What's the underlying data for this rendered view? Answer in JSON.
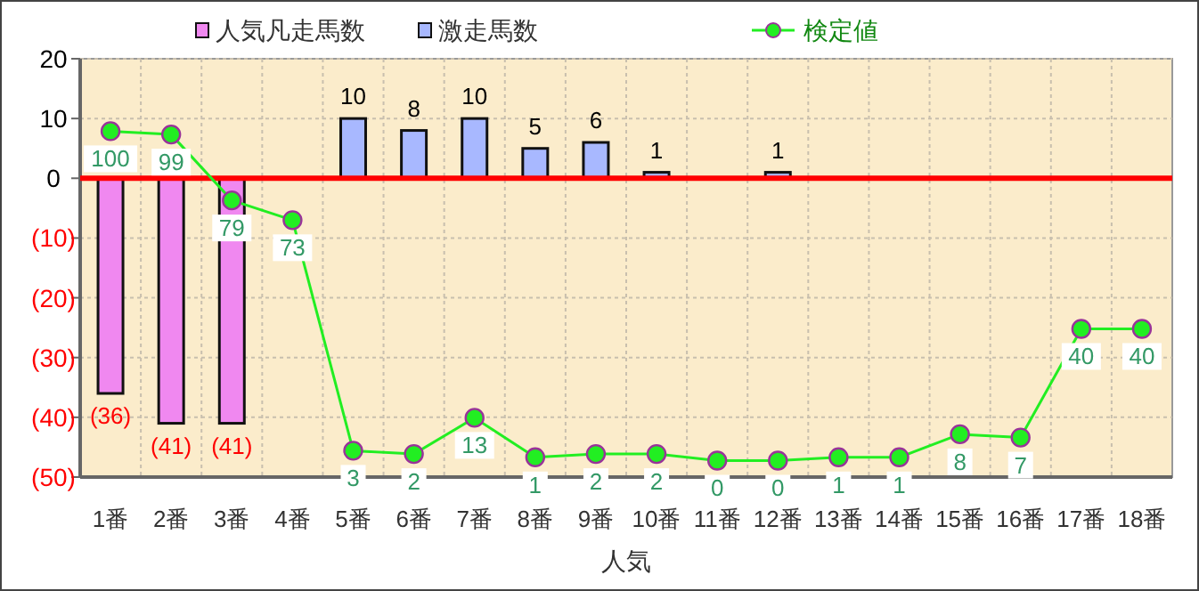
{
  "chart_data": {
    "type": "bar",
    "xlabel": "人気",
    "categories": [
      "1番",
      "2番",
      "3番",
      "4番",
      "5番",
      "6番",
      "7番",
      "8番",
      "9番",
      "10番",
      "11番",
      "12番",
      "13番",
      "14番",
      "15番",
      "16番",
      "17番",
      "18番"
    ],
    "series": [
      {
        "name": "人気凡走馬数",
        "color": "#f088f0",
        "values": [
          -36,
          -41,
          -41,
          0,
          0,
          0,
          0,
          0,
          0,
          0,
          0,
          0,
          0,
          0,
          0,
          0,
          0,
          0
        ],
        "value_labels": [
          "(36)",
          "(41)",
          "(41)",
          null,
          null,
          null,
          null,
          null,
          null,
          null,
          null,
          null,
          null,
          null,
          null,
          null,
          null,
          null
        ]
      },
      {
        "name": "激走馬数",
        "color": "#a8b8ff",
        "values": [
          0,
          0,
          0,
          0,
          10,
          8,
          10,
          5,
          6,
          1,
          0,
          1,
          0,
          0,
          0,
          0,
          0,
          0
        ],
        "value_labels": [
          null,
          null,
          null,
          null,
          "10",
          "8",
          "10",
          "5",
          "6",
          "1",
          null,
          "1",
          null,
          null,
          null,
          null,
          null,
          null
        ]
      },
      {
        "name": "検定値",
        "type": "line",
        "axis": "y2",
        "marker": "circle",
        "color": "#22ee22",
        "values": [
          100,
          99,
          79,
          73,
          3,
          2,
          13,
          1,
          2,
          2,
          0,
          0,
          1,
          1,
          8,
          7,
          40,
          40
        ],
        "value_labels": [
          "100",
          "99",
          "79",
          "73",
          "3",
          "2",
          "13",
          "1",
          "2",
          "2",
          "0",
          "0",
          "1",
          "1",
          "8",
          "7",
          "40",
          "40"
        ]
      }
    ],
    "ylim": [
      -50,
      20
    ],
    "yticks": [
      {
        "value": -50,
        "label": "(50)"
      },
      {
        "value": -40,
        "label": "(40)"
      },
      {
        "value": -30,
        "label": "(30)"
      },
      {
        "value": -20,
        "label": "(20)"
      },
      {
        "value": -10,
        "label": "(10)"
      },
      0,
      10,
      20
    ],
    "y2lim": [
      -5,
      122
    ],
    "ref_lines": [
      {
        "axis": "y",
        "value": 0,
        "color": "#ff0000"
      }
    ],
    "grid": true,
    "legend": "top"
  }
}
